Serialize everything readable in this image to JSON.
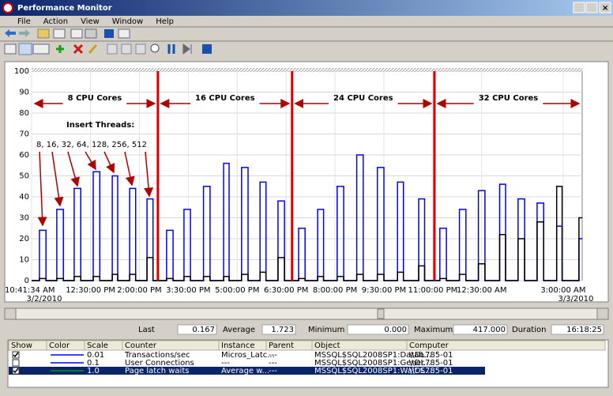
{
  "window": {
    "title": "Performance Monitor",
    "menu": [
      "File",
      "Action",
      "View",
      "Window",
      "Help"
    ]
  },
  "chart_data": {
    "type": "line",
    "ylim": [
      0,
      100
    ],
    "yticks": [
      0,
      10,
      20,
      30,
      40,
      50,
      60,
      70,
      80,
      90,
      100
    ],
    "grid": true,
    "xlim": [
      641.57,
      1655
    ],
    "xticks": [
      {
        "value": 641.57,
        "label": "10:41:34 AM"
      },
      {
        "value": 750,
        "label": "12:30:00 PM"
      },
      {
        "value": 840,
        "label": "2:00:00 PM"
      },
      {
        "value": 930,
        "label": "3:30:00 PM"
      },
      {
        "value": 1020,
        "label": "5:00:00 PM"
      },
      {
        "value": 1110,
        "label": "6:30:00 PM"
      },
      {
        "value": 1200,
        "label": "8:00:00 PM"
      },
      {
        "value": 1290,
        "label": "9:30:00 PM"
      },
      {
        "value": 1380,
        "label": "11:00:00 PM"
      },
      {
        "value": 1470,
        "label": "12:30:00 AM"
      },
      {
        "value": 1620,
        "label": "3:00:00 AM"
      }
    ],
    "xtick_dates": [
      {
        "value": 641.57,
        "label": "3/2/2010"
      },
      {
        "value": 1620,
        "label": "3/3/2010"
      }
    ],
    "dividers": [
      874,
      1121,
      1383
    ],
    "divider_color": "#dd0000",
    "annotations": [
      "8 CPU Cores",
      "16 CPU Cores",
      "24 CPU Cores",
      "32 CPU Cores"
    ],
    "insert_threads_label": "Insert Threads:",
    "insert_threads": "8, 16, 32, 64, 128, 256, 512",
    "x": [
      641.57,
      656,
      656,
      668,
      668,
      688,
      688,
      700,
      700,
      720,
      720,
      732,
      732,
      755,
      755,
      767,
      767,
      790,
      790,
      800,
      800,
      822,
      822,
      833,
      833,
      854,
      854,
      865,
      865,
      890,
      890,
      902,
      902,
      922,
      922,
      934,
      934,
      958,
      958,
      970,
      970,
      995,
      995,
      1005,
      1005,
      1028,
      1028,
      1040,
      1040,
      1062,
      1062,
      1073,
      1073,
      1095,
      1095,
      1107,
      1107,
      1133,
      1133,
      1145,
      1145,
      1168,
      1168,
      1179,
      1179,
      1204,
      1204,
      1216,
      1216,
      1240,
      1240,
      1252,
      1252,
      1278,
      1278,
      1290,
      1290,
      1315,
      1315,
      1326,
      1326,
      1354,
      1354,
      1365,
      1365,
      1393,
      1393,
      1405,
      1405,
      1429,
      1429,
      1441,
      1441,
      1464,
      1464,
      1476,
      1476,
      1503,
      1503,
      1514,
      1514,
      1537,
      1537,
      1549,
      1549,
      1572,
      1572,
      1584,
      1584,
      1608,
      1608,
      1618,
      1618,
      1649,
      1649,
      1655
    ],
    "series": [
      {
        "color": "#0000ff",
        "values": [
          0,
          0,
          24,
          24,
          0,
          0,
          34,
          34,
          0,
          0,
          44,
          44,
          0,
          0,
          52,
          52,
          0,
          0,
          50,
          50,
          0,
          0,
          44,
          44,
          0,
          0,
          39,
          39,
          0,
          0,
          24,
          24,
          0,
          0,
          34,
          34,
          0,
          0,
          45,
          45,
          0,
          0,
          56,
          56,
          0,
          0,
          54,
          54,
          0,
          0,
          47,
          47,
          0,
          0,
          38,
          38,
          0,
          0,
          25,
          25,
          0,
          0,
          34,
          34,
          0,
          0,
          45,
          45,
          0,
          0,
          60,
          60,
          0,
          0,
          54,
          54,
          0,
          0,
          47,
          47,
          0,
          0,
          39,
          39,
          0,
          0,
          25,
          25,
          0,
          0,
          34,
          34,
          0,
          0,
          43,
          43,
          0,
          0,
          46,
          46,
          0,
          0,
          39,
          39,
          0,
          0,
          37,
          37,
          0,
          0,
          26,
          26,
          0,
          0,
          20,
          20
        ]
      },
      {
        "color": "#000000",
        "values": [
          0,
          0,
          1,
          1,
          0,
          0,
          1,
          1,
          0,
          0,
          2,
          2,
          0,
          0,
          2,
          2,
          0,
          0,
          3,
          3,
          0,
          0,
          3,
          3,
          0,
          0,
          11,
          11,
          0,
          0,
          1,
          1,
          0,
          0,
          2,
          2,
          0,
          0,
          2,
          2,
          0,
          0,
          2,
          2,
          0,
          0,
          3,
          3,
          0,
          0,
          4,
          4,
          0,
          0,
          11,
          11,
          0,
          0,
          1,
          1,
          0,
          0,
          2,
          2,
          0,
          0,
          2,
          2,
          0,
          0,
          3,
          3,
          0,
          0,
          3,
          3,
          0,
          0,
          4,
          4,
          0,
          0,
          7,
          7,
          0,
          0,
          1,
          1,
          0,
          0,
          3,
          3,
          0,
          0,
          8,
          8,
          0,
          0,
          22,
          22,
          0,
          0,
          20,
          20,
          0,
          0,
          28,
          28,
          0,
          0,
          45,
          45,
          0,
          0,
          30,
          30
        ]
      }
    ]
  },
  "stats": {
    "Last": [
      "Last",
      "0.167"
    ],
    "Average": [
      "Average",
      "1.723"
    ],
    "Minimum": [
      "Minimum",
      "0.000"
    ],
    "Maximum": [
      "Maximum",
      "417.000"
    ],
    "Duration": [
      "Duration",
      "16:18:25"
    ]
  },
  "table": {
    "headers": [
      "Show",
      "Color",
      "Scale",
      "Counter",
      "Instance",
      "Parent",
      "Object",
      "Computer"
    ],
    "rows": [
      {
        "show": true,
        "color": "#0000ff",
        "cells": [
          "0.01",
          "Transactions/sec",
          "Micros_Latc...",
          "---",
          "MSSQL$SQL2008SP1:Datab...",
          "\\\\DL785-01"
        ]
      },
      {
        "show": false,
        "color": "#0000ff",
        "cells": [
          "0.1",
          "User Connections",
          "---",
          "---",
          "MSSQL$SQL2008SP1:Gener...",
          "\\\\DL785-01"
        ]
      },
      {
        "show": true,
        "color": "#00a000",
        "selected": true,
        "cells": [
          "1.0",
          "Page latch waits",
          "Average w...",
          "---",
          "MSSQL$SQL2008SP1:Wait S...",
          "\\\\DL785-01"
        ]
      }
    ]
  }
}
